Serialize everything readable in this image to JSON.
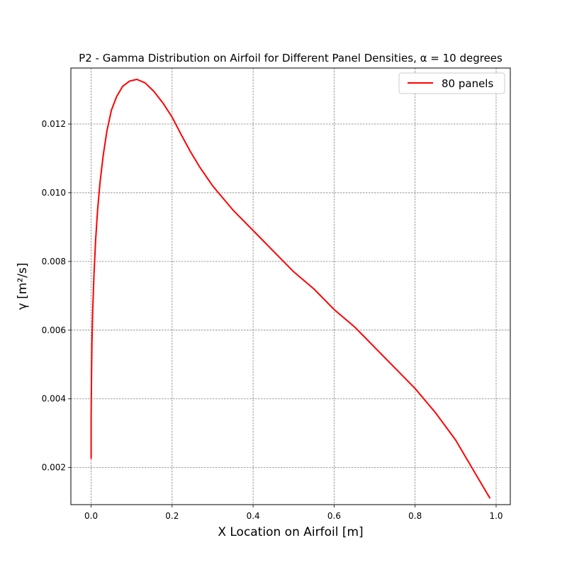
{
  "chart_data": {
    "type": "line",
    "title": "P2 - Gamma Distribution on Airfoil for Different Panel Densities, α = 10 degrees",
    "xlabel": "X Location on Airfoil [m]",
    "ylabel": "γ [m²/s]",
    "xlim": [
      -0.05,
      1.035
    ],
    "ylim": [
      0.00092,
      0.01363
    ],
    "xticks": [
      0.0,
      0.2,
      0.4,
      0.6,
      0.8,
      1.0
    ],
    "xtick_labels": [
      "0.0",
      "0.2",
      "0.4",
      "0.6",
      "0.8",
      "1.0"
    ],
    "yticks": [
      0.002,
      0.004,
      0.006,
      0.008,
      0.01,
      0.012
    ],
    "ytick_labels": [
      "0.002",
      "0.004",
      "0.006",
      "0.008",
      "0.010",
      "0.012"
    ],
    "grid": true,
    "legend_position": "top-right",
    "series": [
      {
        "name": "80 panels",
        "color": "#ff0000",
        "x": [
          0.0,
          0.0,
          0.001,
          0.002,
          0.004,
          0.007,
          0.011,
          0.016,
          0.022,
          0.03,
          0.039,
          0.05,
          0.063,
          0.078,
          0.095,
          0.113,
          0.133,
          0.155,
          0.178,
          0.2,
          0.222,
          0.245,
          0.268,
          0.3,
          0.35,
          0.4,
          0.45,
          0.5,
          0.55,
          0.6,
          0.65,
          0.7,
          0.75,
          0.8,
          0.85,
          0.9,
          0.93,
          0.95,
          0.97,
          0.985
        ],
        "y": [
          0.00225,
          0.0035,
          0.0047,
          0.0056,
          0.0066,
          0.0076,
          0.0086,
          0.0095,
          0.0103,
          0.0111,
          0.0118,
          0.0124,
          0.0128,
          0.0131,
          0.01325,
          0.0133,
          0.0132,
          0.01295,
          0.0126,
          0.0122,
          0.0117,
          0.0112,
          0.01075,
          0.0102,
          0.0095,
          0.0089,
          0.0083,
          0.0077,
          0.0072,
          0.0066,
          0.0061,
          0.0055,
          0.0049,
          0.0043,
          0.0036,
          0.0028,
          0.0022,
          0.0018,
          0.0014,
          0.0011
        ]
      }
    ]
  }
}
